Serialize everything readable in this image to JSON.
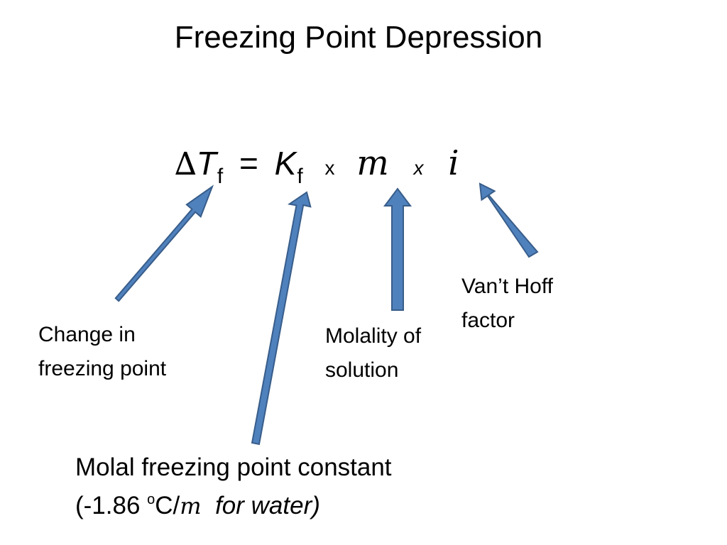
{
  "title": "Freezing Point Depression",
  "equation": {
    "delta": "∆",
    "T": "T",
    "T_sub": "f",
    "equals": "=",
    "K": "K",
    "K_sub": "f",
    "times1": "x",
    "m": "m",
    "times2": "x",
    "i": "i"
  },
  "labels": {
    "change_line1": "Change in",
    "change_line2": "freezing point",
    "molality_line1": "Molality of",
    "molality_line2": "solution",
    "vant_line1": "Van’t Hoff",
    "vant_line2": "factor",
    "constant_line1": "Molal freezing point constant",
    "constant_open": "(-1.86 ",
    "constant_sup": "o",
    "constant_unit": "C/",
    "constant_m": "m",
    "constant_tail": "  for water)"
  },
  "colors": {
    "arrow_fill": "#4f81bd",
    "arrow_stroke": "#385d8a"
  }
}
